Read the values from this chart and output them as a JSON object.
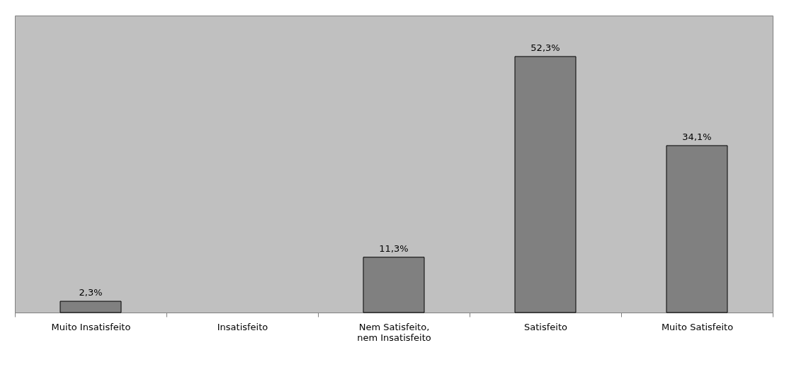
{
  "chart_data": {
    "type": "bar",
    "categories": [
      "Muito Insatisfeito",
      "Insatisfeito",
      "Nem Satisfeito,\nnem Insatisfeito",
      "Satisfeito",
      "Muito Satisfeito"
    ],
    "values": [
      2.3,
      null,
      11.3,
      52.3,
      34.1
    ],
    "value_labels": [
      "2,3%",
      null,
      "11,3%",
      "52,3%",
      "34,1%"
    ],
    "color": "#808080",
    "grid": false
  }
}
